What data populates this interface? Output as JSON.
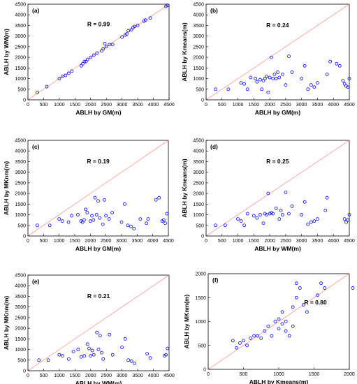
{
  "chart_data": [
    {
      "type": "scatter",
      "panel_label": "(a)",
      "annotation": "R = 0.99",
      "xlabel": "ABLH by GM(m)",
      "ylabel": "ABLH by WM(m)",
      "xlim": [
        0,
        4500
      ],
      "ylim": [
        0,
        4500
      ],
      "xticks": [
        "0",
        "500",
        "1000",
        "1500",
        "2000",
        "2500",
        "3000",
        "3500",
        "4000",
        "4500"
      ],
      "yticks": [
        "0",
        "500",
        "1000",
        "1500",
        "2000",
        "2500",
        "3000",
        "3500",
        "4000",
        "4500"
      ],
      "point_color": "#0000ff",
      "line_color": "#ff9999",
      "x": [
        300,
        600,
        1000,
        1100,
        1200,
        1300,
        1400,
        1700,
        1750,
        1800,
        1850,
        1900,
        2000,
        2100,
        2200,
        2350,
        2400,
        2450,
        2500,
        2600,
        2700,
        3000,
        3100,
        3150,
        3200,
        3300,
        3350,
        3400,
        3500,
        3700,
        3750,
        3900,
        4400,
        4450
      ],
      "y": [
        350,
        620,
        1000,
        1100,
        1150,
        1250,
        1350,
        1600,
        1700,
        1800,
        1800,
        1900,
        2000,
        2100,
        2200,
        2300,
        2400,
        2650,
        2500,
        2600,
        2600,
        2950,
        3050,
        3100,
        3250,
        3300,
        3400,
        3450,
        3500,
        3700,
        3750,
        3850,
        4400,
        4450
      ]
    },
    {
      "type": "scatter",
      "panel_label": "(b)",
      "annotation": "R = 0.24",
      "xlabel": "ABLH by GM(m)",
      "ylabel": "ABLH by Kmeans(m)",
      "xlim": [
        0,
        4500
      ],
      "ylim": [
        0,
        4500
      ],
      "xticks": [
        "0",
        "500",
        "1000",
        "1500",
        "2000",
        "2500",
        "3000",
        "3500",
        "4000",
        "4500"
      ],
      "yticks": [
        "0",
        "500",
        "1000",
        "1500",
        "2000",
        "2500",
        "3000",
        "3500",
        "4000",
        "4500"
      ],
      "point_color": "#0000ff",
      "line_color": "#ff9999",
      "x": [
        300,
        700,
        1100,
        1200,
        1300,
        1400,
        1550,
        1600,
        1700,
        1750,
        1800,
        1850,
        1900,
        1950,
        2000,
        2050,
        2100,
        2150,
        2200,
        2250,
        2300,
        2400,
        2500,
        2600,
        2700,
        3000,
        3100,
        3200,
        3300,
        3400,
        3500,
        3800,
        3900,
        4100,
        4200,
        4300,
        4350,
        4400,
        4450,
        4500
      ],
      "y": [
        500,
        500,
        800,
        750,
        500,
        1050,
        1000,
        850,
        950,
        500,
        900,
        1000,
        1100,
        350,
        1050,
        2000,
        1000,
        1200,
        1000,
        1300,
        1050,
        1200,
        700,
        2050,
        1300,
        1000,
        1600,
        500,
        700,
        600,
        800,
        1200,
        1800,
        1700,
        1600,
        900,
        750,
        650,
        600,
        1000
      ]
    },
    {
      "type": "scatter",
      "panel_label": "(c)",
      "annotation": "R = 0.19",
      "xlabel": "ABLH by GM(m)",
      "ylabel": "ABLH by MKnm(m)",
      "xlim": [
        0,
        4500
      ],
      "ylim": [
        0,
        4500
      ],
      "xticks": [
        "0",
        "500",
        "1000",
        "1500",
        "2000",
        "2500",
        "3000",
        "3500",
        "4000",
        "4500"
      ],
      "yticks": [
        "0",
        "500",
        "1000",
        "1500",
        "2000",
        "2500",
        "3000",
        "3500",
        "4000",
        "4500"
      ],
      "point_color": "#0000ff",
      "line_color": "#ff9999",
      "x": [
        300,
        700,
        1000,
        1100,
        1300,
        1400,
        1600,
        1700,
        1750,
        1800,
        1850,
        1900,
        2000,
        2050,
        2100,
        2150,
        2200,
        2250,
        2300,
        2400,
        2450,
        2500,
        2600,
        2700,
        3000,
        3100,
        3200,
        3300,
        3400,
        3600,
        3800,
        3850,
        4100,
        4200,
        4300,
        4350,
        4400,
        4450
      ],
      "y": [
        500,
        500,
        800,
        700,
        650,
        950,
        1000,
        700,
        650,
        750,
        1250,
        1100,
        700,
        950,
        750,
        1800,
        1000,
        1650,
        850,
        550,
        1700,
        950,
        800,
        1100,
        650,
        1500,
        500,
        450,
        350,
        800,
        600,
        800,
        1700,
        1800,
        700,
        750,
        600,
        1050
      ]
    },
    {
      "type": "scatter",
      "panel_label": "(d)",
      "annotation": "R = 0.25",
      "xlabel": "ABLH by WM(m)",
      "ylabel": "ABLH by Kmeans(m)",
      "xlim": [
        0,
        4500
      ],
      "ylim": [
        0,
        4500
      ],
      "xticks": [
        "0",
        "500",
        "1000",
        "1500",
        "2000",
        "2500",
        "3000",
        "3500",
        "4000",
        "4500"
      ],
      "yticks": [
        "0",
        "500",
        "1000",
        "1500",
        "2000",
        "2500",
        "3000",
        "3500",
        "4000",
        "4500"
      ],
      "point_color": "#0000ff",
      "line_color": "#ff9999",
      "x": [
        300,
        600,
        1000,
        1100,
        1200,
        1300,
        1500,
        1600,
        1700,
        1800,
        1850,
        1900,
        1950,
        2000,
        2050,
        2100,
        2200,
        2300,
        2350,
        2400,
        2500,
        2600,
        2700,
        3000,
        3100,
        3200,
        3300,
        3400,
        3500,
        3750,
        3800,
        4350,
        4400,
        4450,
        4500
      ],
      "y": [
        500,
        500,
        800,
        700,
        500,
        1050,
        950,
        850,
        1000,
        600,
        1050,
        1000,
        2000,
        1050,
        1100,
        1050,
        1300,
        800,
        1200,
        1000,
        2050,
        1050,
        1400,
        1000,
        1600,
        550,
        650,
        700,
        800,
        1200,
        1800,
        800,
        650,
        750,
        1000
      ]
    },
    {
      "type": "scatter",
      "panel_label": "(e)",
      "annotation": "R = 0.21",
      "xlabel": "ABLH by WM(m)",
      "ylabel": "ABLH by MKnm(m)",
      "xlim": [
        0,
        4500
      ],
      "ylim": [
        0,
        4500
      ],
      "xticks": [
        "0",
        "500",
        "1000",
        "1500",
        "2000",
        "2500",
        "3000",
        "3500",
        "4000",
        "4500"
      ],
      "yticks": [
        "0",
        "500",
        "1000",
        "1500",
        "2000",
        "2500",
        "3000",
        "3500",
        "4000",
        "4500"
      ],
      "point_color": "#0000ff",
      "line_color": "#ff9999",
      "x": [
        350,
        650,
        1000,
        1100,
        1300,
        1450,
        1600,
        1700,
        1800,
        1900,
        1950,
        2000,
        2050,
        2100,
        2200,
        2250,
        2300,
        2350,
        2400,
        2600,
        2700,
        3000,
        3100,
        3200,
        3300,
        3400,
        3800,
        3900,
        4350,
        4400,
        4450
      ],
      "y": [
        500,
        500,
        750,
        700,
        550,
        900,
        1000,
        650,
        700,
        1250,
        1050,
        700,
        950,
        750,
        1800,
        1000,
        1650,
        850,
        550,
        1700,
        750,
        1100,
        1500,
        500,
        450,
        350,
        800,
        600,
        700,
        750,
        1050
      ]
    },
    {
      "type": "scatter",
      "panel_label": "(f)",
      "annotation": "R = 0.80",
      "xlabel": "ABLH by Kmeans(m)",
      "ylabel": "ABLH by MKnm(m)",
      "xlim": [
        0,
        2000
      ],
      "ylim": [
        0,
        2000
      ],
      "xticks": [
        "0",
        "500",
        "1000",
        "1500",
        "2000"
      ],
      "yticks": [
        "0",
        "500",
        "1000",
        "1500",
        "2000"
      ],
      "point_color": "#0000ff",
      "line_color": "#ff9999",
      "x": [
        350,
        400,
        450,
        500,
        550,
        600,
        650,
        700,
        750,
        800,
        850,
        900,
        950,
        1000,
        1000,
        1050,
        1050,
        1100,
        1100,
        1150,
        1200,
        1200,
        1250,
        1250,
        1300,
        1350,
        1400,
        1550,
        1600,
        1650,
        2050
      ],
      "y": [
        600,
        450,
        550,
        600,
        500,
        650,
        700,
        700,
        650,
        800,
        900,
        700,
        1000,
        1050,
        850,
        1200,
        950,
        800,
        1000,
        700,
        1300,
        900,
        1800,
        1500,
        1700,
        1350,
        1200,
        1550,
        1800,
        1700,
        1700
      ]
    }
  ]
}
